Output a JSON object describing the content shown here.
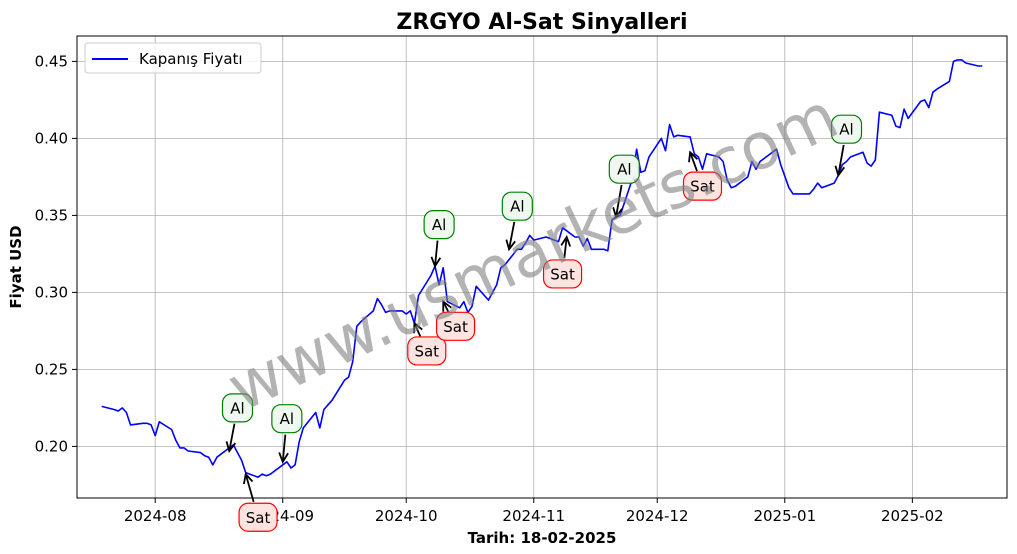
{
  "chart_data": {
    "type": "line",
    "title": "ZRGYO Al-Sat Sinyalleri",
    "xlabel": "Tarih: 18-02-2025",
    "ylabel": "Fiyat USD",
    "grid": true,
    "legend_position": "top-left",
    "watermark": "www.usmarkets.com",
    "xlim": [
      "2024-07-13",
      "2025-02-24"
    ],
    "ylim": [
      0.1665,
      0.4665
    ],
    "x_ticks": [
      "2024-08-01",
      "2024-09-01",
      "2024-10-01",
      "2024-11-01",
      "2024-12-01",
      "2025-01-01",
      "2025-02-01"
    ],
    "x_tick_labels": [
      "2024-08",
      "2024-09",
      "2024-10",
      "2024-11",
      "2024-12",
      "2025-01",
      "2025-02"
    ],
    "y_ticks": [
      0.2,
      0.25,
      0.3,
      0.35,
      0.4,
      0.45
    ],
    "y_tick_labels": [
      "0.20",
      "0.25",
      "0.30",
      "0.35",
      "0.40",
      "0.45"
    ],
    "series": [
      {
        "name": "Kapanış Fiyatı",
        "color": "#0000ff",
        "points": [
          [
            "2024-07-19",
            0.226
          ],
          [
            "2024-07-22",
            0.224
          ],
          [
            "2024-07-23",
            0.223
          ],
          [
            "2024-07-24",
            0.225
          ],
          [
            "2024-07-25",
            0.222
          ],
          [
            "2024-07-26",
            0.214
          ],
          [
            "2024-07-29",
            0.215
          ],
          [
            "2024-07-30",
            0.215
          ],
          [
            "2024-07-31",
            0.214
          ],
          [
            "2024-08-01",
            0.207
          ],
          [
            "2024-08-02",
            0.216
          ],
          [
            "2024-08-05",
            0.211
          ],
          [
            "2024-08-06",
            0.204
          ],
          [
            "2024-08-07",
            0.199
          ],
          [
            "2024-08-08",
            0.199
          ],
          [
            "2024-08-09",
            0.197
          ],
          [
            "2024-08-12",
            0.196
          ],
          [
            "2024-08-13",
            0.194
          ],
          [
            "2024-08-14",
            0.193
          ],
          [
            "2024-08-15",
            0.188
          ],
          [
            "2024-08-16",
            0.193
          ],
          [
            "2024-08-19",
            0.199
          ],
          [
            "2024-08-20",
            0.201
          ],
          [
            "2024-08-21",
            0.196
          ],
          [
            "2024-08-22",
            0.191
          ],
          [
            "2024-08-23",
            0.183
          ],
          [
            "2024-08-26",
            0.18
          ],
          [
            "2024-08-27",
            0.182
          ],
          [
            "2024-08-28",
            0.181
          ],
          [
            "2024-08-29",
            0.182
          ],
          [
            "2024-09-02",
            0.19
          ],
          [
            "2024-09-03",
            0.186
          ],
          [
            "2024-09-04",
            0.188
          ],
          [
            "2024-09-05",
            0.203
          ],
          [
            "2024-09-06",
            0.212
          ],
          [
            "2024-09-09",
            0.222
          ],
          [
            "2024-09-10",
            0.212
          ],
          [
            "2024-09-11",
            0.224
          ],
          [
            "2024-09-12",
            0.227
          ],
          [
            "2024-09-13",
            0.23
          ],
          [
            "2024-09-16",
            0.243
          ],
          [
            "2024-09-17",
            0.245
          ],
          [
            "2024-09-18",
            0.255
          ],
          [
            "2024-09-19",
            0.278
          ],
          [
            "2024-09-20",
            0.281
          ],
          [
            "2024-09-23",
            0.288
          ],
          [
            "2024-09-24",
            0.296
          ],
          [
            "2024-09-25",
            0.292
          ],
          [
            "2024-09-26",
            0.287
          ],
          [
            "2024-09-27",
            0.288
          ],
          [
            "2024-09-30",
            0.288
          ],
          [
            "2024-10-01",
            0.286
          ],
          [
            "2024-10-02",
            0.288
          ],
          [
            "2024-10-03",
            0.28
          ],
          [
            "2024-10-04",
            0.298
          ],
          [
            "2024-10-07",
            0.311
          ],
          [
            "2024-10-08",
            0.317
          ],
          [
            "2024-10-09",
            0.305
          ],
          [
            "2024-10-10",
            0.316
          ],
          [
            "2024-10-11",
            0.294
          ],
          [
            "2024-10-14",
            0.29
          ],
          [
            "2024-10-15",
            0.294
          ],
          [
            "2024-10-16",
            0.287
          ],
          [
            "2024-10-17",
            0.291
          ],
          [
            "2024-10-18",
            0.304
          ],
          [
            "2024-10-21",
            0.295
          ],
          [
            "2024-10-22",
            0.3
          ],
          [
            "2024-10-23",
            0.305
          ],
          [
            "2024-10-24",
            0.316
          ],
          [
            "2024-10-25",
            0.318
          ],
          [
            "2024-10-28",
            0.328
          ],
          [
            "2024-10-29",
            0.328
          ],
          [
            "2024-10-30",
            0.332
          ],
          [
            "2024-10-31",
            0.337
          ],
          [
            "2024-11-01",
            0.334
          ],
          [
            "2024-11-04",
            0.336
          ],
          [
            "2024-11-05",
            0.335
          ],
          [
            "2024-11-06",
            0.334
          ],
          [
            "2024-11-07",
            0.333
          ],
          [
            "2024-11-08",
            0.342
          ],
          [
            "2024-11-11",
            0.336
          ],
          [
            "2024-11-12",
            0.336
          ],
          [
            "2024-11-13",
            0.33
          ],
          [
            "2024-11-14",
            0.335
          ],
          [
            "2024-11-15",
            0.328
          ],
          [
            "2024-11-18",
            0.328
          ],
          [
            "2024-11-19",
            0.327
          ],
          [
            "2024-11-20",
            0.347
          ],
          [
            "2024-11-21",
            0.349
          ],
          [
            "2024-11-22",
            0.35
          ],
          [
            "2024-11-25",
            0.374
          ],
          [
            "2024-11-26",
            0.393
          ],
          [
            "2024-11-27",
            0.378
          ],
          [
            "2024-11-28",
            0.379
          ],
          [
            "2024-11-29",
            0.388
          ],
          [
            "2024-12-02",
            0.4
          ],
          [
            "2024-12-03",
            0.392
          ],
          [
            "2024-12-04",
            0.409
          ],
          [
            "2024-12-05",
            0.401
          ],
          [
            "2024-12-06",
            0.402
          ],
          [
            "2024-12-09",
            0.401
          ],
          [
            "2024-12-10",
            0.39
          ],
          [
            "2024-12-11",
            0.388
          ],
          [
            "2024-12-12",
            0.38
          ],
          [
            "2024-12-13",
            0.39
          ],
          [
            "2024-12-16",
            0.388
          ],
          [
            "2024-12-17",
            0.385
          ],
          [
            "2024-12-18",
            0.373
          ],
          [
            "2024-12-19",
            0.368
          ],
          [
            "2024-12-20",
            0.369
          ],
          [
            "2024-12-23",
            0.375
          ],
          [
            "2024-12-24",
            0.385
          ],
          [
            "2024-12-25",
            0.38
          ],
          [
            "2024-12-26",
            0.385
          ],
          [
            "2024-12-27",
            0.387
          ],
          [
            "2024-12-30",
            0.393
          ],
          [
            "2024-12-31",
            0.383
          ],
          [
            "2025-01-02",
            0.368
          ],
          [
            "2025-01-03",
            0.364
          ],
          [
            "2025-01-06",
            0.364
          ],
          [
            "2025-01-07",
            0.364
          ],
          [
            "2025-01-08",
            0.367
          ],
          [
            "2025-01-09",
            0.371
          ],
          [
            "2025-01-10",
            0.368
          ],
          [
            "2025-01-13",
            0.371
          ],
          [
            "2025-01-14",
            0.376
          ],
          [
            "2025-01-15",
            0.383
          ],
          [
            "2025-01-16",
            0.385
          ],
          [
            "2025-01-17",
            0.388
          ],
          [
            "2025-01-20",
            0.391
          ],
          [
            "2025-01-21",
            0.384
          ],
          [
            "2025-01-22",
            0.382
          ],
          [
            "2025-01-23",
            0.386
          ],
          [
            "2025-01-24",
            0.417
          ],
          [
            "2025-01-27",
            0.415
          ],
          [
            "2025-01-28",
            0.408
          ],
          [
            "2025-01-29",
            0.407
          ],
          [
            "2025-01-30",
            0.419
          ],
          [
            "2025-01-31",
            0.413
          ],
          [
            "2025-02-03",
            0.424
          ],
          [
            "2025-02-04",
            0.425
          ],
          [
            "2025-02-05",
            0.42
          ],
          [
            "2025-02-06",
            0.43
          ],
          [
            "2025-02-07",
            0.432
          ],
          [
            "2025-02-10",
            0.437
          ],
          [
            "2025-02-11",
            0.45
          ],
          [
            "2025-02-12",
            0.451
          ],
          [
            "2025-02-13",
            0.451
          ],
          [
            "2025-02-14",
            0.449
          ],
          [
            "2025-02-17",
            0.447
          ],
          [
            "2025-02-18",
            0.447
          ]
        ]
      }
    ],
    "annotations": [
      {
        "label": "Al",
        "kind": "buy",
        "x": "2024-08-19",
        "y": 0.197,
        "text_x": "2024-08-21",
        "text_y": 0.225
      },
      {
        "label": "Al",
        "kind": "buy",
        "x": "2024-09-01",
        "y": 0.19,
        "text_x": "2024-09-02",
        "text_y": 0.218
      },
      {
        "label": "Sat",
        "kind": "sell",
        "x": "2024-08-23",
        "y": 0.182,
        "text_x": "2024-08-26",
        "text_y": 0.154
      },
      {
        "label": "Sat",
        "kind": "sell",
        "x": "2024-10-03",
        "y": 0.28,
        "text_x": "2024-10-06",
        "text_y": 0.262
      },
      {
        "label": "Sat",
        "kind": "sell",
        "x": "2024-10-10",
        "y": 0.294,
        "text_x": "2024-10-13",
        "text_y": 0.278
      },
      {
        "label": "Al",
        "kind": "buy",
        "x": "2024-10-08",
        "y": 0.317,
        "text_x": "2024-10-09",
        "text_y": 0.344
      },
      {
        "label": "Al",
        "kind": "buy",
        "x": "2024-10-26",
        "y": 0.328,
        "text_x": "2024-10-28",
        "text_y": 0.356
      },
      {
        "label": "Sat",
        "kind": "sell",
        "x": "2024-11-09",
        "y": 0.336,
        "text_x": "2024-11-08",
        "text_y": 0.312
      },
      {
        "label": "Al",
        "kind": "buy",
        "x": "2024-11-21",
        "y": 0.349,
        "text_x": "2024-11-23",
        "text_y": 0.38
      },
      {
        "label": "Sat",
        "kind": "sell",
        "x": "2024-12-09",
        "y": 0.391,
        "text_x": "2024-12-12",
        "text_y": 0.369
      },
      {
        "label": "Al",
        "kind": "buy",
        "x": "2025-01-14",
        "y": 0.376,
        "text_x": "2025-01-16",
        "text_y": 0.406
      }
    ],
    "colors": {
      "line": "#0000ff",
      "buy_edge": "#008000",
      "buy_fill": "#eef8ee",
      "sell_edge": "#ff0000",
      "sell_fill": "#fde4e1",
      "grid": "#b0b0b0",
      "watermark": "#808080"
    }
  }
}
